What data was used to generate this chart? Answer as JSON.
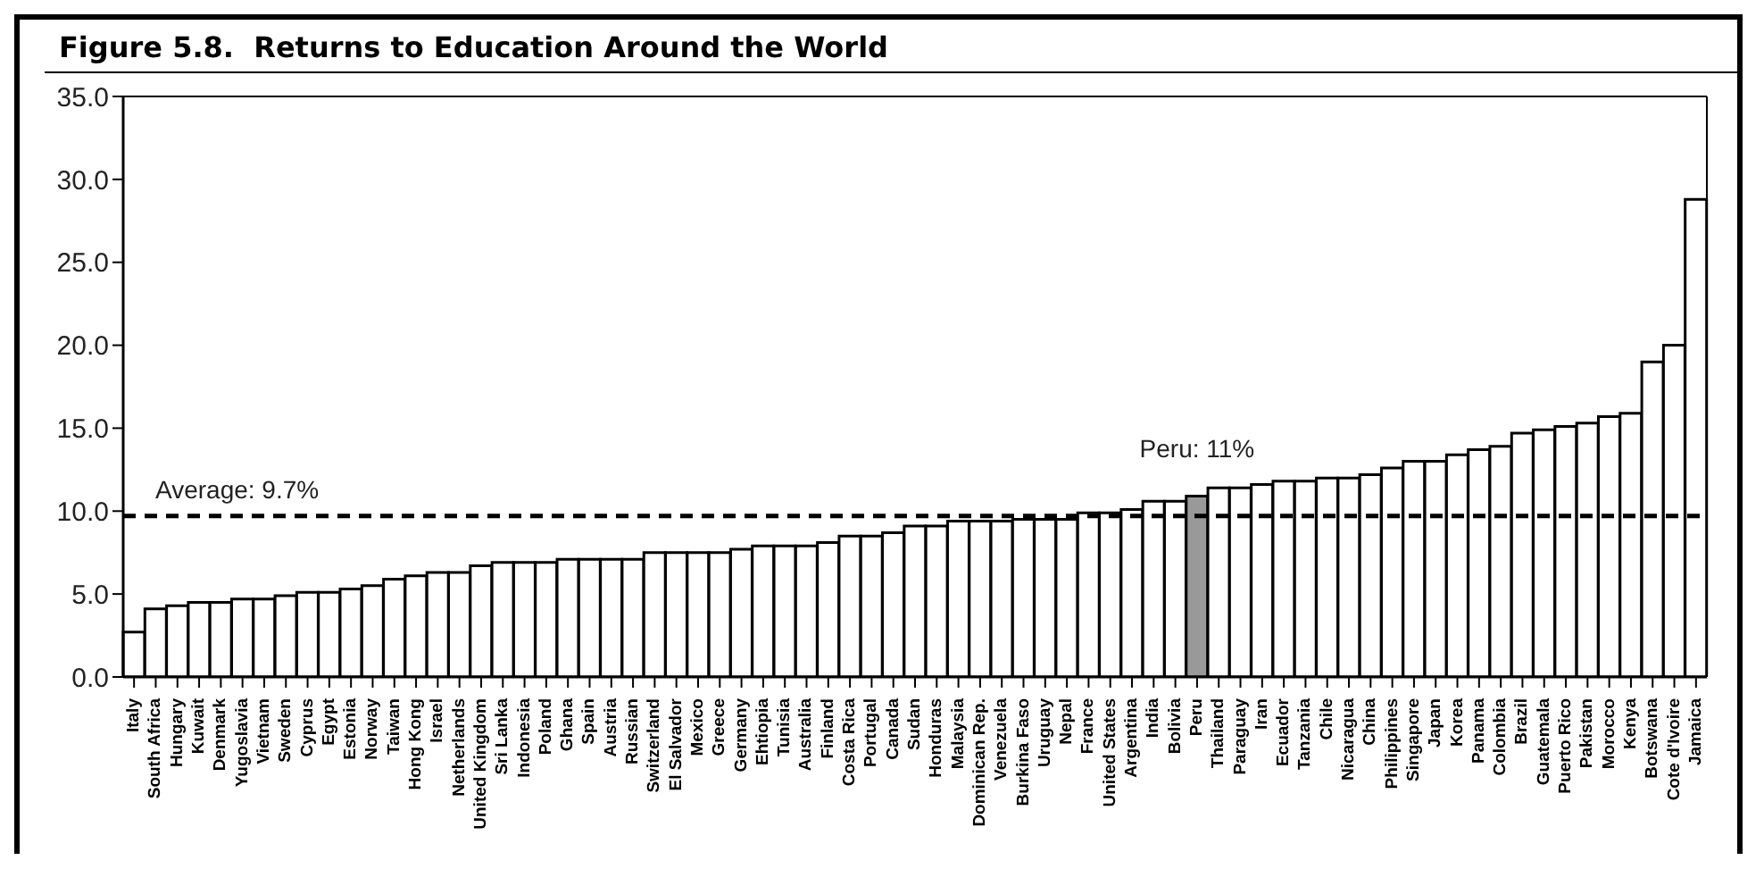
{
  "chart_data": {
    "type": "bar",
    "title": "Figure 5.8.  Returns to Education Around the World",
    "categories": [
      "Italy",
      "South Africa",
      "Hungary",
      "Kuwait",
      "Denmark",
      "Yugoslavia",
      "Vietnam",
      "Sweden",
      "Cyprus",
      "Egypt",
      "Estonia",
      "Norway",
      "Taiwan",
      "Hong Kong",
      "Israel",
      "Netherlands",
      "United Kingdom",
      "Sri Lanka",
      "Indonesia",
      "Poland",
      "Ghana",
      "Spain",
      "Austria",
      "Russian",
      "Switzerland",
      "El Salvador",
      "Mexico",
      "Greece",
      "Germany",
      "Ehtiopia",
      "Tunisia",
      "Australia",
      "Finland",
      "Costa Rica",
      "Portugal",
      "Canada",
      "Sudan",
      "Honduras",
      "Malaysia",
      "Dominican Rep.",
      "Venezuela",
      "Burkina Faso",
      "Uruguay",
      "Nepal",
      "France",
      "United States",
      "Argentina",
      "India",
      "Bolivia",
      "Peru",
      "Thailand",
      "Paraguay",
      "Iran",
      "Ecuador",
      "Tanzania",
      "Chile",
      "Nicaragua",
      "China",
      "Philippines",
      "Singapore",
      "Japan",
      "Korea",
      "Panama",
      "Colombia",
      "Brazil",
      "Guatemala",
      "Puerto Rico",
      "Pakistan",
      "Morocco",
      "Kenya",
      "Botswana",
      "Cote d'Ivoire",
      "Jamaica"
    ],
    "values": [
      2.7,
      4.1,
      4.3,
      4.5,
      4.5,
      4.7,
      4.7,
      4.9,
      5.1,
      5.1,
      5.3,
      5.5,
      5.9,
      6.1,
      6.3,
      6.3,
      6.7,
      6.9,
      6.9,
      6.9,
      7.1,
      7.1,
      7.1,
      7.1,
      7.5,
      7.5,
      7.5,
      7.5,
      7.7,
      7.9,
      7.9,
      7.9,
      8.1,
      8.5,
      8.5,
      8.7,
      9.1,
      9.1,
      9.4,
      9.4,
      9.4,
      9.5,
      9.5,
      9.5,
      9.9,
      9.9,
      10.1,
      10.6,
      10.6,
      10.9,
      11.4,
      11.4,
      11.6,
      11.8,
      11.8,
      12.0,
      12.0,
      12.2,
      12.6,
      13.0,
      13.0,
      13.4,
      13.7,
      13.9,
      14.7,
      14.9,
      15.1,
      15.3,
      15.7,
      15.9,
      19.0,
      20.0,
      28.8
    ],
    "colors": [
      "#ffffff",
      "#ffffff",
      "#ffffff",
      "#ffffff",
      "#ffffff",
      "#ffffff",
      "#ffffff",
      "#ffffff",
      "#ffffff",
      "#ffffff",
      "#ffffff",
      "#ffffff",
      "#ffffff",
      "#ffffff",
      "#ffffff",
      "#ffffff",
      "#ffffff",
      "#ffffff",
      "#ffffff",
      "#ffffff",
      "#ffffff",
      "#ffffff",
      "#ffffff",
      "#ffffff",
      "#ffffff",
      "#ffffff",
      "#ffffff",
      "#ffffff",
      "#ffffff",
      "#ffffff",
      "#ffffff",
      "#ffffff",
      "#ffffff",
      "#ffffff",
      "#ffffff",
      "#ffffff",
      "#ffffff",
      "#ffffff",
      "#ffffff",
      "#ffffff",
      "#ffffff",
      "#ffffff",
      "#ffffff",
      "#ffffff",
      "#ffffff",
      "#ffffff",
      "#ffffff",
      "#ffffff",
      "#ffffff",
      "#999999",
      "#ffffff",
      "#ffffff",
      "#ffffff",
      "#ffffff",
      "#ffffff",
      "#ffffff",
      "#ffffff",
      "#ffffff",
      "#ffffff",
      "#ffffff",
      "#ffffff",
      "#ffffff",
      "#ffffff",
      "#ffffff",
      "#ffffff",
      "#ffffff",
      "#ffffff",
      "#ffffff",
      "#ffffff",
      "#ffffff",
      "#ffffff",
      "#ffffff",
      "#ffffff"
    ],
    "ylim": [
      0,
      35
    ],
    "yticks": [
      {
        "value": 0,
        "label": "0.0"
      },
      {
        "value": 5,
        "label": "5.0"
      },
      {
        "value": 10,
        "label": "10.0"
      },
      {
        "value": 15,
        "label": "15.0"
      },
      {
        "value": 20,
        "label": "20.0"
      },
      {
        "value": 25,
        "label": "25.0"
      },
      {
        "value": 30,
        "label": "30.0"
      },
      {
        "value": 35,
        "label": "35.0"
      }
    ],
    "ref_lines": [
      {
        "axis": "y",
        "value": 9.7,
        "label": "Average: 9.7%",
        "color": "#000000",
        "line_style": "dashed"
      }
    ],
    "annotations": [
      {
        "text": "Peru: 11%",
        "x": "Peru",
        "y": 10.9
      }
    ],
    "tick_labels": "xy"
  }
}
